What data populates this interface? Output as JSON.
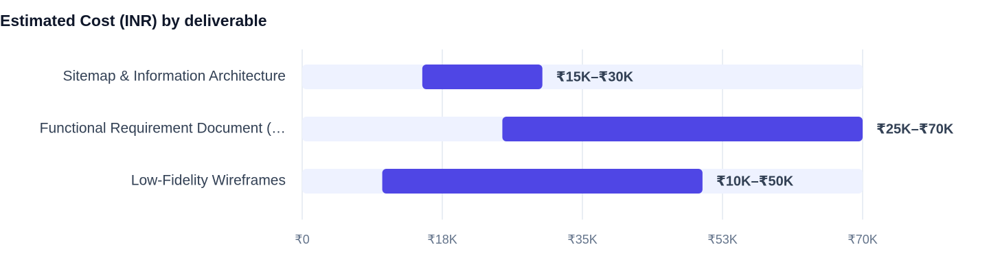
{
  "chart_data": {
    "type": "range_bar",
    "title": "Estimated Cost (INR) by deliverable",
    "categories": [
      "Sitemap & Information Architecture",
      "Functional Requirement Document (…",
      "Low-Fidelity Wireframes"
    ],
    "low": [
      15000,
      25000,
      10000
    ],
    "high": [
      30000,
      70000,
      50000
    ],
    "value_labels": [
      "₹15K–₹30K",
      "₹25K–₹70K",
      "₹10K–₹50K"
    ],
    "color": "#4f46e5",
    "track_color": "#eef2ff",
    "xlim": [
      0,
      70000
    ],
    "xticks": [
      {
        "value": 0,
        "label": "₹0"
      },
      {
        "value": 17500,
        "label": "₹18K"
      },
      {
        "value": 35000,
        "label": "₹35K"
      },
      {
        "value": 52500,
        "label": "₹53K"
      },
      {
        "value": 70000,
        "label": "₹70K"
      }
    ],
    "grid": true
  }
}
